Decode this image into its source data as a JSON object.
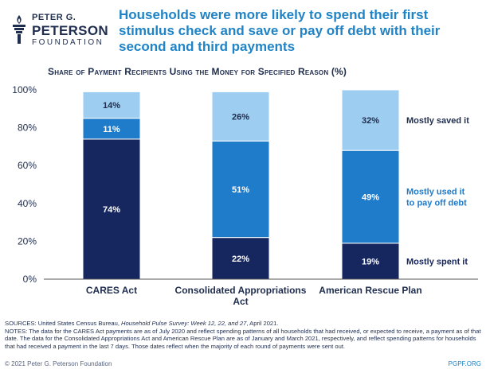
{
  "logo": {
    "line1": "PETER G.",
    "line2": "PETERSON",
    "line3": "FOUNDATION"
  },
  "headline": "Households were more likely to spend their first stimulus check and save or pay off debt with their second and third payments",
  "colors": {
    "spent": "#16265e",
    "debt": "#1f7ccb",
    "saved": "#9dcdf0",
    "headline": "#1f83c6",
    "text": "#1f2d4e"
  },
  "chart_data": {
    "type": "bar",
    "stacked": true,
    "title": "Share of Payment Recipients Using the Money for Specified Reason (%)",
    "categories": [
      "CARES Act",
      "Consolidated Appropriations Act",
      "American Rescue Plan"
    ],
    "series": [
      {
        "name": "Mostly spent it",
        "values": [
          74,
          22,
          19
        ],
        "labels": [
          "74%",
          "22%",
          "19%"
        ]
      },
      {
        "name": "Mostly used it to pay off debt",
        "values": [
          11,
          51,
          49
        ],
        "labels": [
          "11%",
          "51%",
          "49%"
        ]
      },
      {
        "name": "Mostly saved it",
        "values": [
          14,
          26,
          32
        ],
        "labels": [
          "14%",
          "26%",
          "32%"
        ]
      }
    ],
    "yticks": [
      "0%",
      "20%",
      "40%",
      "60%",
      "80%",
      "100%"
    ],
    "ylim": [
      0,
      100
    ],
    "grid": false,
    "legend": "right"
  },
  "footer": {
    "sources_prefix": "SOURCES: United States Census Bureau, ",
    "sources_italic": "Household Pulse Survey: Week 12, 22, and 27",
    "sources_suffix": ", April 2021.",
    "notes": "NOTES: The data for the CARES Act payments are as of July 2020 and reflect spending patterns of all households that had received, or expected to receive, a payment as of that date. The data for the Consolidated Appropriations Act and American Rescue Plan are as of January and March 2021, respectively, and reflect spending patterns for households that had received a payment in the last 7 days. Those dates reflect when the majority of each round of payments were sent out.",
    "copyright": "© 2021 Peter G. Peterson Foundation",
    "url": "PGPF.ORG"
  }
}
